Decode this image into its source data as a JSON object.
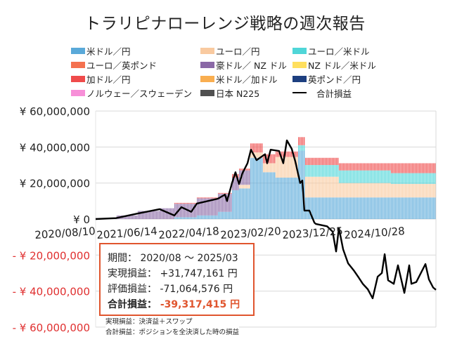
{
  "chart_data": {
    "type": "stacked-bar+line",
    "title": "トラリピナローレンジ戦略の週次報告",
    "ylim": [
      -60000000,
      60000000
    ],
    "y_ticks": [
      {
        "value": 60000000,
        "label": "¥ 60,000,000"
      },
      {
        "value": 40000000,
        "label": "¥ 40,000,000"
      },
      {
        "value": 20000000,
        "label": "¥ 20,000,000"
      },
      {
        "value": 0,
        "label": "¥ 0"
      },
      {
        "value": -20000000,
        "label": "- ¥ 20,000,000"
      },
      {
        "value": -40000000,
        "label": "- ¥ 40,000,000"
      },
      {
        "value": -60000000,
        "label": "- ¥ 60,000,000"
      }
    ],
    "x_range": [
      "2020-08-10",
      "2025-03-31"
    ],
    "x_ticks": [
      "2020/08/10",
      "2021/06/14",
      "2022/04/18",
      "2023/02/20",
      "2023/12/25",
      "2024/10/28"
    ],
    "grid": true,
    "legend_placement": "top",
    "negative_label_color": "#e03030",
    "legend": [
      {
        "name": "米ドル／円",
        "color": "#5aa9d9",
        "kind": "bar"
      },
      {
        "name": "ユーロ／円",
        "color": "#f9caa0",
        "kind": "bar"
      },
      {
        "name": "ユーロ／米ドル",
        "color": "#4fd6d8",
        "kind": "bar"
      },
      {
        "name": "ユーロ／英ポンド",
        "color": "#f4714f",
        "kind": "bar"
      },
      {
        "name": "豪ドル／ NZ ドル",
        "color": "#8a68a6",
        "kind": "bar"
      },
      {
        "name": "NZ ドル／米ドル",
        "color": "#ffdf5e",
        "kind": "bar"
      },
      {
        "name": "加ドル／円",
        "color": "#ef4b4b",
        "kind": "bar"
      },
      {
        "name": "米ドル／加ドル",
        "color": "#f9ae50",
        "kind": "bar"
      },
      {
        "name": "英ポンド／円",
        "color": "#1d3f80",
        "kind": "bar"
      },
      {
        "name": "ノルウェー／スウェーデン",
        "color": "#f78fd8",
        "kind": "bar"
      },
      {
        "name": "日本 N225",
        "color": "#505050",
        "kind": "bar"
      },
      {
        "name": "合計損益",
        "color": "#000000",
        "kind": "line"
      }
    ],
    "stack_segments_millions": [
      {
        "from": "2020-08-10",
        "to": "2020-11-19",
        "豪ドル／ NZ ドル": 0.5
      },
      {
        "from": "2020-11-19",
        "to": "2021-03-04",
        "豪ドル／ NZ ドル": 2
      },
      {
        "from": "2021-03-04",
        "to": "2021-06-24",
        "豪ドル／ NZ ドル": 4.5
      },
      {
        "from": "2021-06-24",
        "to": "2021-09-06",
        "豪ドル／ NZ ドル": 6
      },
      {
        "from": "2021-09-06",
        "to": "2021-12-27",
        "米ドル／円": 1,
        "豪ドル／ NZ ドル": 7.5,
        "加ドル／円": 0.5
      },
      {
        "from": "2021-12-27",
        "to": "2022-04-11",
        "米ドル／円": 2,
        "豪ドル／ NZ ドル": 9.5,
        "加ドル／円": 0.5
      },
      {
        "from": "2022-04-11",
        "to": "2022-06-15",
        "米ドル／円": 4,
        "豪ドル／ NZ ドル": 10,
        "加ドル／円": 0.5
      },
      {
        "from": "2022-06-15",
        "to": "2022-07-20",
        "米ドル／円": 16,
        "豪ドル／ NZ ドル": 7,
        "加ドル／円": 2
      },
      {
        "from": "2022-07-20",
        "to": "2022-09-15",
        "米ドル／円": 17,
        "ユーロ／円": 2,
        "豪ドル／ NZ ドル": 8,
        "加ドル／円": 1
      },
      {
        "from": "2022-09-15",
        "to": "2022-11-15",
        "米ドル／円": 34,
        "ユーロ／円": 3,
        "加ドル／円": 5
      },
      {
        "from": "2022-11-15",
        "to": "2023-01-20",
        "米ドル／円": 26,
        "ユーロ／円": 5,
        "加ドル／円": 5
      },
      {
        "from": "2023-01-20",
        "to": "2023-05-15",
        "米ドル／円": 23,
        "ユーロ／円": 11.5,
        "加ドル／円": 3
      },
      {
        "from": "2023-05-15",
        "to": "2023-06-15",
        "米ドル／円": 38,
        "ユーロ／米ドル": 3,
        "加ドル／円": 4.5
      },
      {
        "from": "2023-06-15",
        "to": "2023-12-04",
        "米ドル／円": 12,
        "ユーロ／円": 11.5,
        "ユーロ／米ドル": 6.5,
        "加ドル／円": 4
      },
      {
        "from": "2023-12-04",
        "to": "2024-08-15",
        "米ドル／円": 12,
        "ユーロ／円": 8,
        "ユーロ／米ドル": 7,
        "加ドル／円": 4
      },
      {
        "from": "2024-08-15",
        "to": "2025-03-31",
        "米ドル／円": 12,
        "ユーロ／円": 7.5,
        "ユーロ／米ドル": 6,
        "加ドル／円": 5.5
      }
    ],
    "total_line_millions": [
      [
        "2020-08-10",
        0
      ],
      [
        "2020-11-19",
        0.5
      ],
      [
        "2021-03-04",
        3
      ],
      [
        "2021-06-24",
        5.5
      ],
      [
        "2021-09-06",
        2
      ],
      [
        "2021-10-11",
        6.6
      ],
      [
        "2021-11-29",
        4
      ],
      [
        "2021-12-27",
        8.6
      ],
      [
        "2022-04-11",
        11.3
      ],
      [
        "2022-05-16",
        13.6
      ],
      [
        "2022-05-26",
        10
      ],
      [
        "2022-06-20",
        20
      ],
      [
        "2022-07-07",
        26
      ],
      [
        "2022-07-25",
        19.5
      ],
      [
        "2022-08-11",
        25.5
      ],
      [
        "2022-09-05",
        31
      ],
      [
        "2022-09-22",
        38.5
      ],
      [
        "2022-10-20",
        32.7
      ],
      [
        "2022-12-01",
        36
      ],
      [
        "2022-12-12",
        31
      ],
      [
        "2022-12-29",
        38.5
      ],
      [
        "2023-02-09",
        37.8
      ],
      [
        "2023-03-02",
        31
      ],
      [
        "2023-03-20",
        43.7
      ],
      [
        "2023-04-13",
        39
      ],
      [
        "2023-05-01",
        32
      ],
      [
        "2023-05-25",
        20
      ],
      [
        "2023-06-05",
        21.4
      ],
      [
        "2023-06-15",
        4.7
      ],
      [
        "2023-07-10",
        4.7
      ],
      [
        "2023-08-04",
        -2
      ],
      [
        "2023-08-11",
        -2.7
      ],
      [
        "2023-10-06",
        -4
      ],
      [
        "2023-11-03",
        -7
      ],
      [
        "2023-11-20",
        -18
      ],
      [
        "2023-12-04",
        -5
      ],
      [
        "2023-12-25",
        -16.8
      ],
      [
        "2024-01-19",
        -24.6
      ],
      [
        "2024-02-16",
        -28.5
      ],
      [
        "2024-03-11",
        -32.4
      ],
      [
        "2024-04-01",
        -36
      ],
      [
        "2024-04-26",
        -39
      ],
      [
        "2024-05-20",
        -44
      ],
      [
        "2024-06-14",
        -32
      ],
      [
        "2024-07-05",
        -30
      ],
      [
        "2024-07-19",
        -19.5
      ],
      [
        "2024-08-05",
        -34
      ],
      [
        "2024-09-02",
        -36
      ],
      [
        "2024-09-23",
        -25.7
      ],
      [
        "2024-10-25",
        -41
      ],
      [
        "2024-11-18",
        -25.7
      ],
      [
        "2024-11-29",
        -36
      ],
      [
        "2024-12-23",
        -35
      ],
      [
        "2025-02-07",
        -25
      ],
      [
        "2025-02-24",
        -33.5
      ],
      [
        "2025-03-17",
        -38
      ],
      [
        "2025-03-31",
        -39.3
      ]
    ]
  },
  "summary": {
    "period_label": "期間：",
    "period_value": "2020/08 ～ 2025/03",
    "realized_label": "実現損益：",
    "realized_value": "+31,747,161 円",
    "unrealized_label": "評価損益：",
    "unrealized_value": "-71,064,576 円",
    "total_label": "合計損益：",
    "total_value": "-39,317,415 円",
    "total_color": "#e0552e"
  },
  "notes": [
    "実現損益：決済益＋スワップ",
    "合計損益：ポジションを全決済した時の損益"
  ]
}
